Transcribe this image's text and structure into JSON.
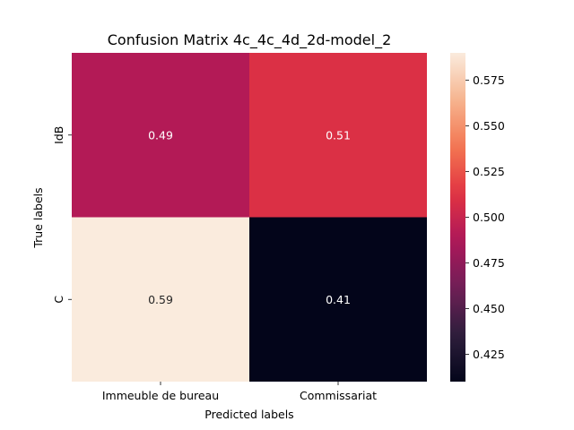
{
  "chart_data": {
    "type": "heatmap",
    "title": "Confusion Matrix 4c_4c_4d_2d-model_2",
    "xlabel": "Predicted labels",
    "ylabel": "True labels",
    "x_categories": [
      "Immeuble de bureau",
      "Commissariat"
    ],
    "y_categories": [
      "IdB",
      "C"
    ],
    "values": [
      [
        0.49,
        0.51
      ],
      [
        0.59,
        0.41
      ]
    ],
    "cell_labels": [
      [
        "0.49",
        "0.51"
      ],
      [
        "0.59",
        "0.41"
      ]
    ],
    "colorbar": {
      "min": 0.41,
      "max": 0.59,
      "ticks": [
        0.425,
        0.45,
        0.475,
        0.5,
        0.525,
        0.55,
        0.575
      ],
      "tick_labels": [
        "0.425",
        "0.450",
        "0.475",
        "0.500",
        "0.525",
        "0.550",
        "0.575"
      ],
      "colormap": "rocket"
    },
    "colors": {
      "rocket_stops": [
        "#03051a",
        "#2e1e3c",
        "#701f57",
        "#ad1759",
        "#e13342",
        "#f37651",
        "#f6b48f",
        "#faebdd"
      ],
      "text_light": "#ffffff",
      "text_dark": "#262626"
    }
  }
}
